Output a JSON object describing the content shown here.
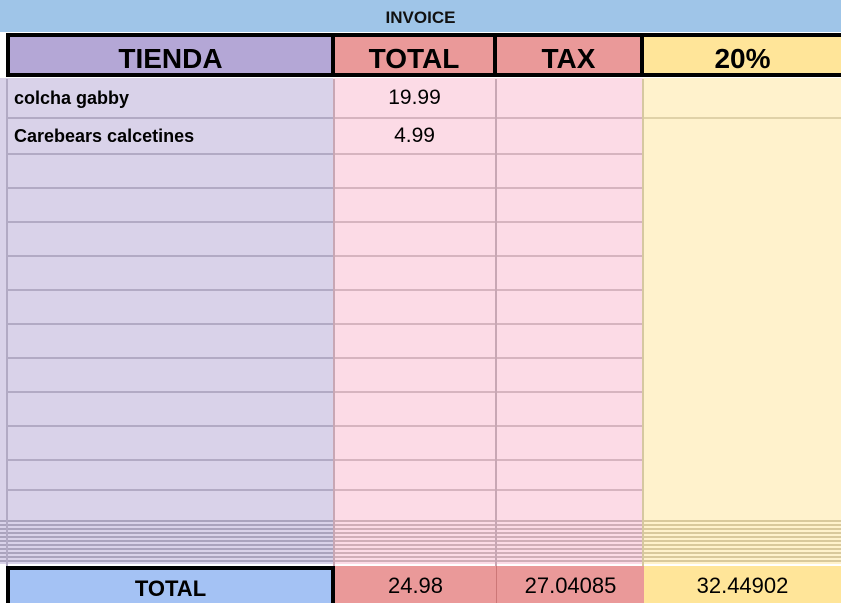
{
  "sheet": {
    "title": "INVOICE",
    "headers": {
      "store": "TIENDA",
      "total": "TOTAL",
      "tax": "TAX",
      "pct": "20%"
    },
    "items": [
      {
        "store": "colcha gabby",
        "total": "19.99"
      },
      {
        "store": "Carebears calcetines",
        "total": "4.99"
      }
    ],
    "totals": {
      "label": "TOTAL",
      "total": "24.98",
      "tax": "27.04085",
      "pct": "32.44902"
    },
    "colors": {
      "title": "#9fc5e8",
      "store_header": "#b4a7d6",
      "store_body": "#d9d2e9",
      "total_header": "#ea9999",
      "total_body": "#fcdbe6",
      "pct_header": "#ffe599",
      "pct_body": "#fff2cc",
      "totals_label": "#a4c2f4"
    }
  }
}
